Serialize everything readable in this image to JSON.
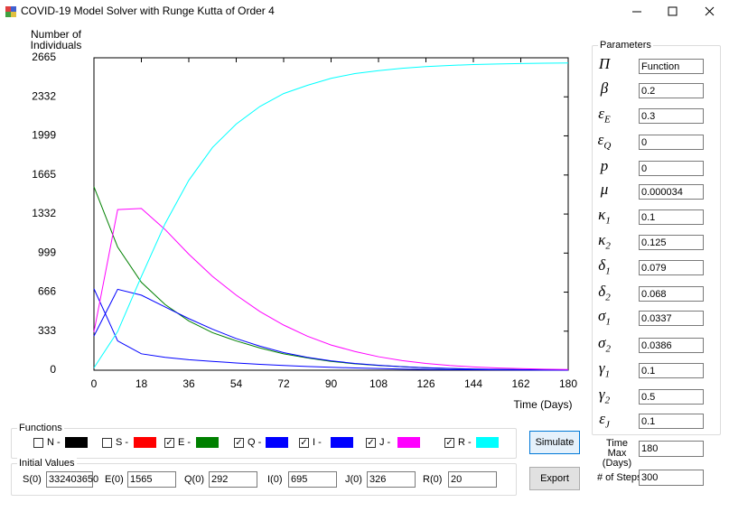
{
  "window": {
    "title": "COVID-19 Model Solver with Runge Kutta of Order 4"
  },
  "chart_data": {
    "type": "line",
    "y_label": "Number of Individuals",
    "x_label": "Time (Days)",
    "xlim": [
      0,
      180
    ],
    "xticks": [
      0,
      18,
      36,
      54,
      72,
      90,
      108,
      126,
      144,
      162,
      180
    ],
    "ylim": [
      0,
      2665
    ],
    "yticks": [
      0,
      333,
      666,
      999,
      1332,
      1665,
      1999,
      2332,
      2665
    ],
    "x": [
      0,
      9,
      18,
      27,
      36,
      45,
      54,
      63,
      72,
      81,
      90,
      99,
      108,
      117,
      126,
      135,
      144,
      153,
      162,
      171,
      180
    ],
    "series": [
      {
        "color": "#008000",
        "values": [
          1565,
          1050,
          750,
          560,
          420,
          320,
          250,
          190,
          140,
          105,
          75,
          55,
          40,
          30,
          20,
          14,
          10,
          7,
          5,
          3,
          2
        ]
      },
      {
        "color": "#0000ff",
        "values": [
          292,
          690,
          640,
          540,
          440,
          350,
          270,
          205,
          150,
          110,
          80,
          58,
          42,
          30,
          21,
          15,
          10,
          7,
          5,
          3,
          2
        ]
      },
      {
        "color": "#0000ff",
        "values": [
          695,
          250,
          140,
          110,
          90,
          75,
          62,
          50,
          40,
          32,
          25,
          19,
          14,
          10,
          7,
          5,
          4,
          3,
          2,
          1,
          1
        ]
      },
      {
        "color": "#ff00ff",
        "values": [
          326,
          1370,
          1380,
          1200,
          990,
          800,
          640,
          500,
          385,
          290,
          215,
          160,
          115,
          82,
          58,
          40,
          28,
          19,
          13,
          9,
          6
        ]
      },
      {
        "color": "#00ffff",
        "values": [
          20,
          330,
          800,
          1250,
          1620,
          1900,
          2100,
          2250,
          2360,
          2430,
          2490,
          2530,
          2555,
          2575,
          2590,
          2600,
          2607,
          2612,
          2616,
          2619,
          2621
        ]
      }
    ]
  },
  "functions": {
    "title": "Functions",
    "items": [
      {
        "label": "N -",
        "checked": false,
        "color": "#000000"
      },
      {
        "label": "S -",
        "checked": false,
        "color": "#ff0000"
      },
      {
        "label": "E -",
        "checked": true,
        "color": "#008000"
      },
      {
        "label": "Q -",
        "checked": true,
        "color": "#0000ff"
      },
      {
        "label": "I -",
        "checked": true,
        "color": "#0000ff"
      },
      {
        "label": "J -",
        "checked": true,
        "color": "#ff00ff"
      },
      {
        "label": "R -",
        "checked": true,
        "color": "#00ffff"
      }
    ]
  },
  "initial_values": {
    "title": "Initial Values",
    "fields": [
      {
        "label": "S(0)",
        "value": "332403650"
      },
      {
        "label": "E(0)",
        "value": "1565"
      },
      {
        "label": "Q(0)",
        "value": "292"
      },
      {
        "label": "I(0)",
        "value": "695"
      },
      {
        "label": "J(0)",
        "value": "326"
      },
      {
        "label": "R(0)",
        "value": "20"
      }
    ]
  },
  "buttons": [
    "Simulate",
    "Export"
  ],
  "parameters": {
    "title": "Parameters",
    "items": [
      {
        "symbol": "Π",
        "value": "Function"
      },
      {
        "symbol": "β",
        "value": "0.2"
      },
      {
        "symbol": "ε",
        "sub": "E",
        "value": "0.3"
      },
      {
        "symbol": "ε",
        "sub": "Q",
        "value": "0"
      },
      {
        "symbol": "p",
        "value": "0"
      },
      {
        "symbol": "μ",
        "value": "0.000034"
      },
      {
        "symbol": "κ",
        "sub": "1",
        "value": "0.1"
      },
      {
        "symbol": "κ",
        "sub": "2",
        "value": "0.125"
      },
      {
        "symbol": "δ",
        "sub": "1",
        "value": "0.079"
      },
      {
        "symbol": "δ",
        "sub": "2",
        "value": "0.068"
      },
      {
        "symbol": "σ",
        "sub": "1",
        "value": "0.0337"
      },
      {
        "symbol": "σ",
        "sub": "2",
        "value": "0.0386"
      },
      {
        "symbol": "γ",
        "sub": "1",
        "value": "0.1"
      },
      {
        "symbol": "γ",
        "sub": "2",
        "value": "0.5"
      },
      {
        "symbol": "ε",
        "sub": "J",
        "value": "0.1"
      }
    ]
  },
  "time_max": {
    "label": "Time Max (Days)",
    "value": "180"
  },
  "steps": {
    "label": "# of Steps",
    "value": "300"
  }
}
